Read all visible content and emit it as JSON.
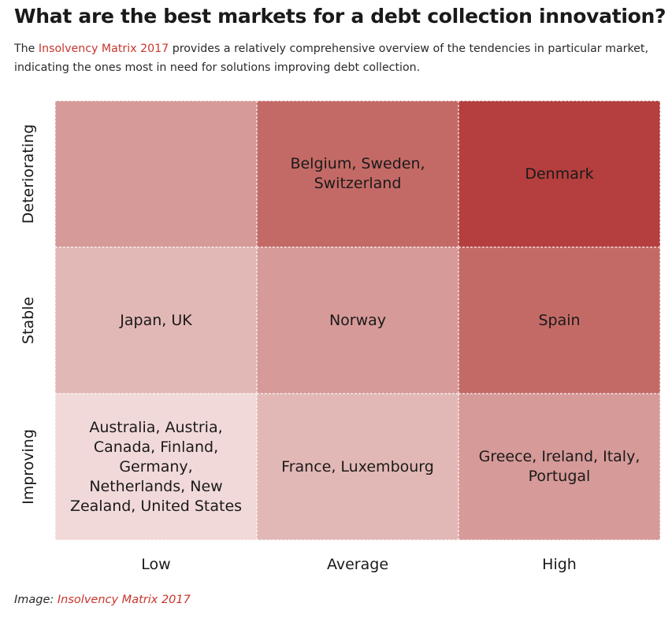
{
  "header": {
    "title": "What are the best markets for a debt collection innovation?",
    "intro_prefix": "The ",
    "intro_link": "Insolvency Matrix 2017",
    "intro_suffix": " provides a relatively comprehensive overview of the tendencies in particular market, indicating the ones most in need for solutions improving debt collection."
  },
  "caption": {
    "prefix": "Image: ",
    "link": "Insolvency Matrix 2017"
  },
  "colors": {
    "level_1": "#f2d9d9",
    "level_2": "#e2b8b6",
    "level_3": "#d69a98",
    "level_4": "#c46a66",
    "level_5": "#b53f3e",
    "link": "#c9352e"
  },
  "chart_data": {
    "type": "heatmap",
    "title": "",
    "xlabel": "",
    "ylabel": "",
    "x_categories": [
      "Low",
      "Average",
      "High"
    ],
    "y_categories": [
      "Deteriorating",
      "Stable",
      "Improving"
    ],
    "cells": [
      {
        "row": 0,
        "col": 0,
        "text": "",
        "level": 3
      },
      {
        "row": 0,
        "col": 1,
        "text": "Belgium, Sweden, Switzerland",
        "level": 4
      },
      {
        "row": 0,
        "col": 2,
        "text": "Denmark",
        "level": 5
      },
      {
        "row": 1,
        "col": 0,
        "text": "Japan, UK",
        "level": 2
      },
      {
        "row": 1,
        "col": 1,
        "text": "Norway",
        "level": 3
      },
      {
        "row": 1,
        "col": 2,
        "text": "Spain",
        "level": 4
      },
      {
        "row": 2,
        "col": 0,
        "text": "Australia, Austria, Canada, Finland, Germany, Netherlands, New Zealand, United States",
        "level": 1
      },
      {
        "row": 2,
        "col": 1,
        "text": "France, Luxembourg",
        "level": 2
      },
      {
        "row": 2,
        "col": 2,
        "text": "Greece, Ireland, Italy, Portugal",
        "level": 3
      }
    ]
  }
}
